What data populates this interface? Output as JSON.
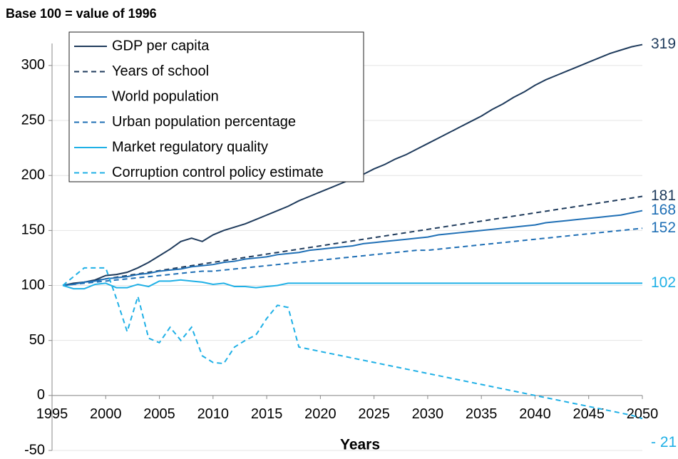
{
  "chart_data": {
    "type": "line",
    "title": "Base 100 = value of 1996",
    "x_label": "Years",
    "x": [
      1996,
      1997,
      1998,
      1999,
      2000,
      2001,
      2002,
      2003,
      2004,
      2005,
      2006,
      2007,
      2008,
      2009,
      2010,
      2011,
      2012,
      2013,
      2014,
      2015,
      2016,
      2017,
      2018,
      2019,
      2020,
      2021,
      2022,
      2023,
      2024,
      2025,
      2026,
      2027,
      2028,
      2029,
      2030,
      2031,
      2032,
      2033,
      2034,
      2035,
      2036,
      2037,
      2038,
      2039,
      2040,
      2041,
      2042,
      2043,
      2044,
      2045,
      2046,
      2047,
      2048,
      2049,
      2050
    ],
    "series": [
      {
        "name": "GDP per capita",
        "color": "#1f3b5c",
        "dash": false,
        "end_label": "319",
        "values": [
          100,
          102,
          103,
          105,
          109,
          110,
          112,
          116,
          121,
          127,
          133,
          140,
          143,
          140,
          146,
          150,
          153,
          156,
          160,
          164,
          168,
          172,
          177,
          181,
          185,
          189,
          193,
          197,
          201,
          206,
          210,
          215,
          219,
          224,
          229,
          234,
          239,
          244,
          249,
          254,
          260,
          265,
          271,
          276,
          282,
          287,
          291,
          295,
          299,
          303,
          307,
          311,
          314,
          317,
          319
        ]
      },
      {
        "name": "Years of school",
        "color": "#1f3b5c",
        "dash": true,
        "end_label": "181",
        "values": [
          100,
          101.5,
          103,
          104.5,
          106,
          107.5,
          109,
          110.5,
          112,
          113.5,
          115,
          116.5,
          118,
          119.5,
          121,
          122.5,
          124,
          125.5,
          127,
          128.5,
          130,
          131.5,
          133,
          134.5,
          136,
          137.5,
          139,
          140.5,
          142,
          143.5,
          145,
          146.5,
          148,
          149.5,
          151,
          152.5,
          154,
          155.5,
          157,
          158.5,
          160,
          161.5,
          163,
          164.5,
          166,
          167.5,
          169,
          170.5,
          172,
          173.5,
          175,
          176.5,
          178,
          179.5,
          181
        ]
      },
      {
        "name": "World population",
        "color": "#1f6fb5",
        "dash": false,
        "end_label": "168",
        "values": [
          100,
          101,
          103,
          104,
          106,
          107,
          108,
          110,
          111,
          113,
          114,
          115,
          117,
          118,
          119,
          121,
          122,
          124,
          125,
          126,
          128,
          129,
          130,
          132,
          133,
          134,
          135,
          136,
          138,
          139,
          140,
          141,
          142,
          143,
          144,
          146,
          147,
          148,
          149,
          150,
          151,
          152,
          153,
          154,
          155,
          157,
          158,
          159,
          160,
          161,
          162,
          163,
          164,
          166,
          168
        ]
      },
      {
        "name": "Urban population percentage",
        "color": "#1f6fb5",
        "dash": true,
        "end_label": "152",
        "values": [
          100,
          101,
          102,
          103,
          104,
          105,
          106,
          107,
          108,
          109,
          110,
          111,
          112,
          113,
          113,
          114,
          115,
          116,
          117,
          118,
          119,
          120,
          121,
          122,
          123,
          124,
          125,
          126,
          127,
          128,
          129,
          130,
          131,
          132,
          132,
          133,
          134,
          135,
          136,
          137,
          138,
          139,
          140,
          141,
          142,
          143,
          144,
          145,
          146,
          147,
          148,
          149,
          150,
          151,
          152
        ]
      },
      {
        "name": "Market regulatory quality",
        "color": "#1fb0e6",
        "dash": false,
        "end_label": "102",
        "values": [
          100,
          97,
          97,
          101,
          102,
          98,
          98,
          101,
          99,
          104,
          104,
          105,
          104,
          103,
          101,
          102,
          99,
          99,
          98,
          99,
          100,
          102,
          102,
          102,
          102,
          102,
          102,
          102,
          102,
          102,
          102,
          102,
          102,
          102,
          102,
          102,
          102,
          102,
          102,
          102,
          102,
          102,
          102,
          102,
          102,
          102,
          102,
          102,
          102,
          102,
          102,
          102,
          102,
          102,
          102
        ]
      },
      {
        "name": "Corruption control policy estimate",
        "color": "#1fb0e6",
        "dash": true,
        "end_label": "- 21",
        "values": [
          100,
          108,
          116,
          116,
          116,
          88,
          58,
          90,
          52,
          48,
          62,
          50,
          62,
          36,
          30,
          29,
          44,
          50,
          55,
          70,
          82,
          80,
          44,
          42,
          40,
          38,
          36,
          34,
          32,
          30,
          28,
          26,
          24,
          22,
          20,
          18,
          16,
          14,
          12,
          10,
          8,
          6,
          4,
          2,
          0,
          -2,
          -4,
          -6,
          -8,
          -10,
          -12,
          -14,
          -16,
          -18,
          -21
        ]
      }
    ],
    "xlim": [
      1995,
      2050
    ],
    "xticks": [
      1995,
      2000,
      2005,
      2010,
      2015,
      2020,
      2025,
      2030,
      2035,
      2040,
      2045,
      2050
    ],
    "ylim": [
      -50,
      320
    ],
    "yticks": [
      -50,
      0,
      50,
      100,
      150,
      200,
      250,
      300
    ],
    "grid": true,
    "legend": "upper left"
  }
}
